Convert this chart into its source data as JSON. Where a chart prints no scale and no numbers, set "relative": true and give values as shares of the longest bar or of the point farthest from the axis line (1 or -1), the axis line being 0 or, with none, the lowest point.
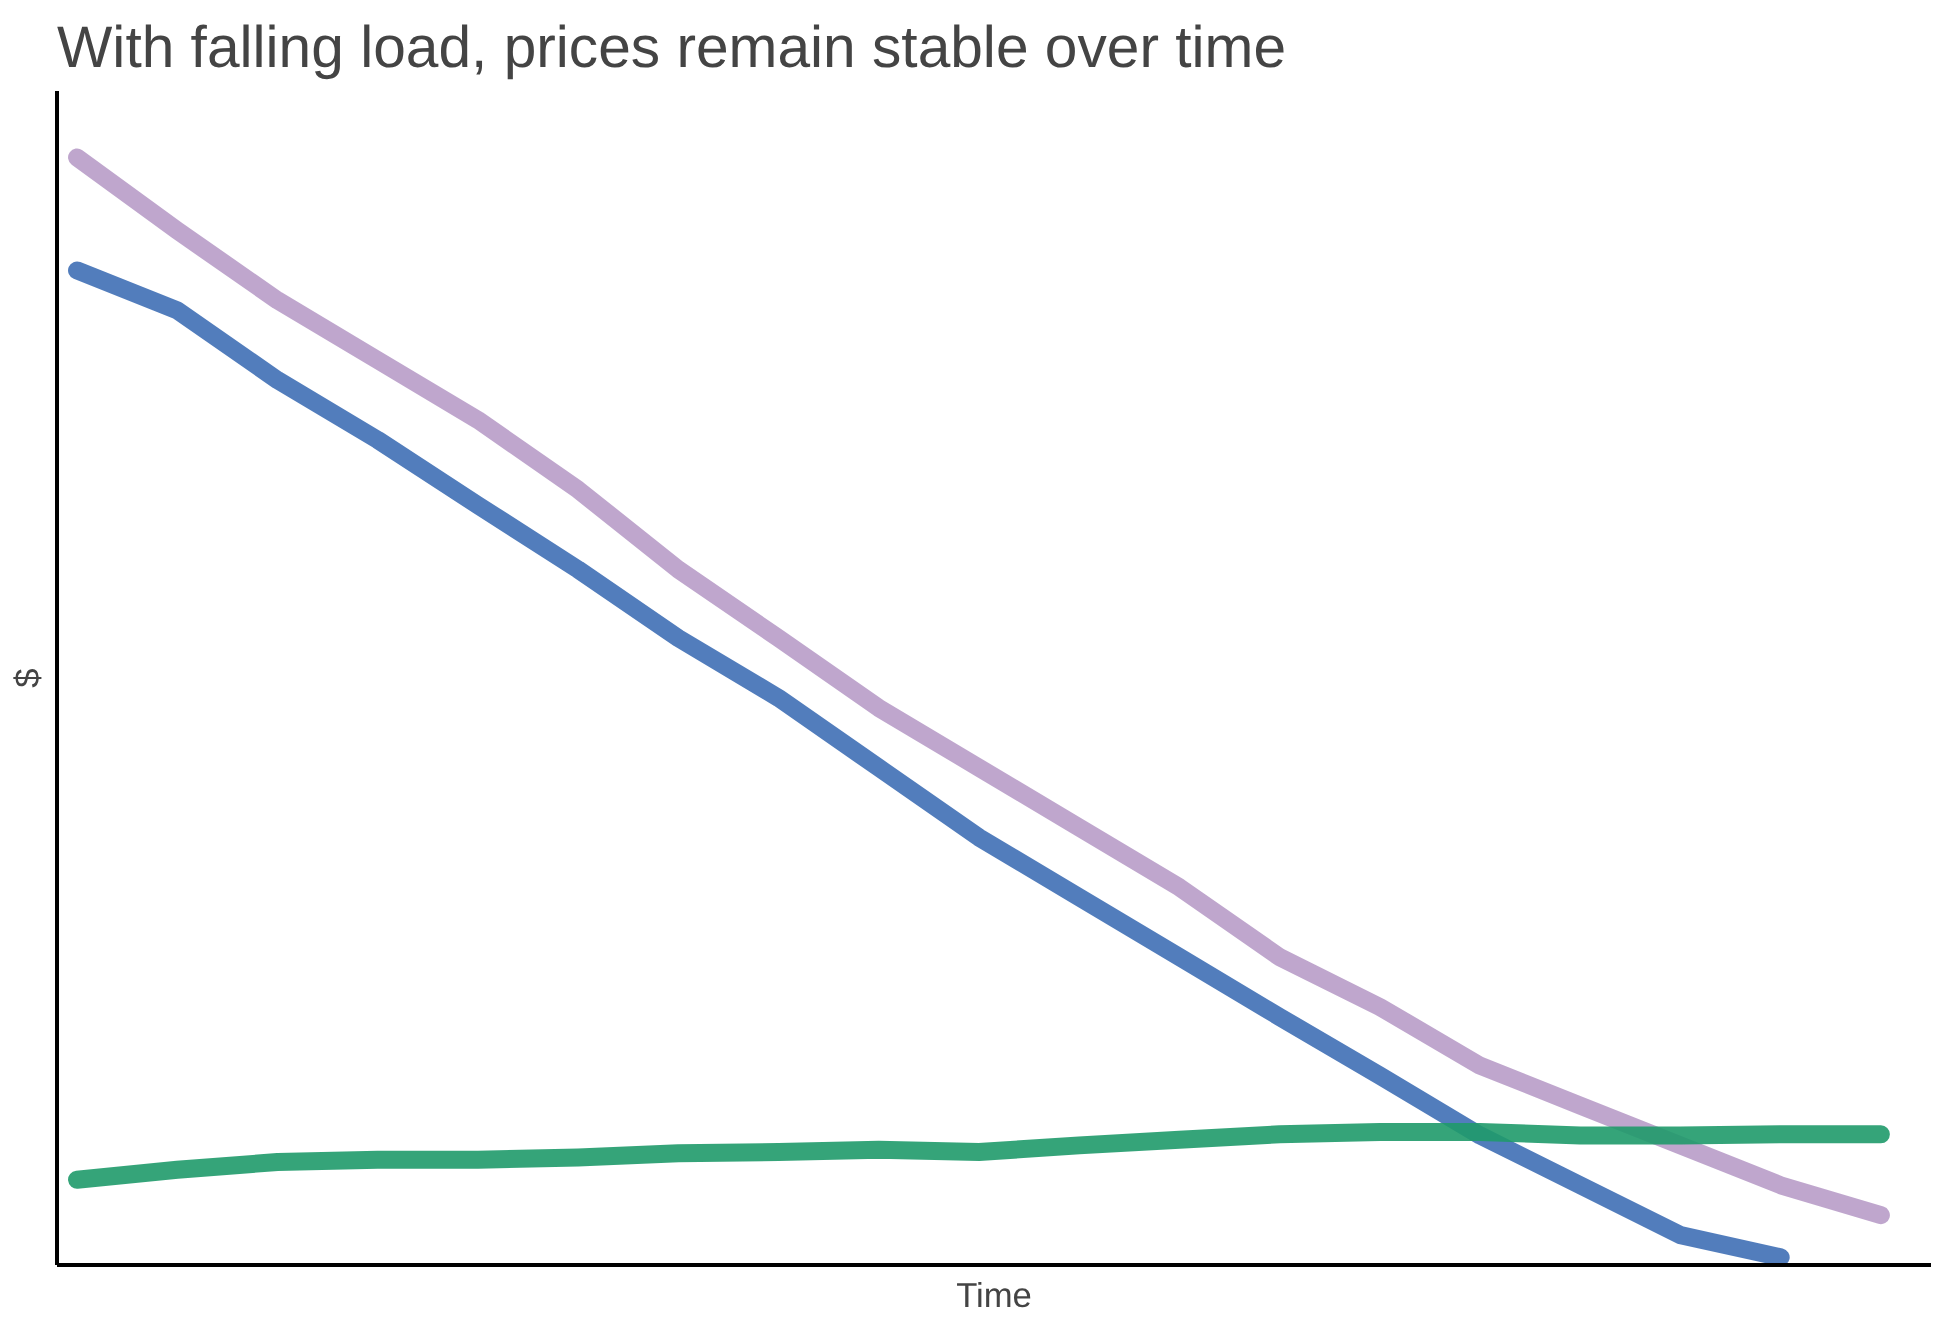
{
  "chart_data": {
    "type": "line",
    "title": "With falling load, prices remain stable over time",
    "xlabel": "Time",
    "ylabel": "$",
    "relative": true,
    "marker": "none",
    "line_style": "solid",
    "categories": [
      null,
      null,
      null,
      null,
      null,
      null,
      null,
      null,
      null,
      null,
      null,
      null,
      null,
      null,
      null,
      null,
      null,
      null,
      null
    ],
    "series": [
      {
        "color": "#b89cc8",
        "values": [
          1.0,
          0.934,
          0.871,
          0.817,
          0.763,
          0.7,
          0.628,
          0.566,
          0.503,
          0.449,
          0.395,
          0.341,
          0.278,
          0.233,
          0.18,
          0.144,
          0.108,
          0.072,
          0.045
        ]
      },
      {
        "color": "#3f6fb5",
        "values": [
          0.898,
          0.862,
          0.799,
          0.745,
          0.686,
          0.628,
          0.566,
          0.512,
          0.449,
          0.386,
          0.332,
          0.278,
          0.224,
          0.171,
          0.117,
          0.072,
          0.027,
          0.007,
          null
        ]
      },
      {
        "color": "#1f9a6a",
        "values": [
          0.077,
          0.086,
          0.093,
          0.095,
          0.095,
          0.097,
          0.101,
          0.102,
          0.104,
          0.102,
          0.108,
          0.113,
          0.118,
          0.12,
          0.12,
          0.117,
          0.117,
          0.118,
          0.118
        ]
      }
    ]
  }
}
